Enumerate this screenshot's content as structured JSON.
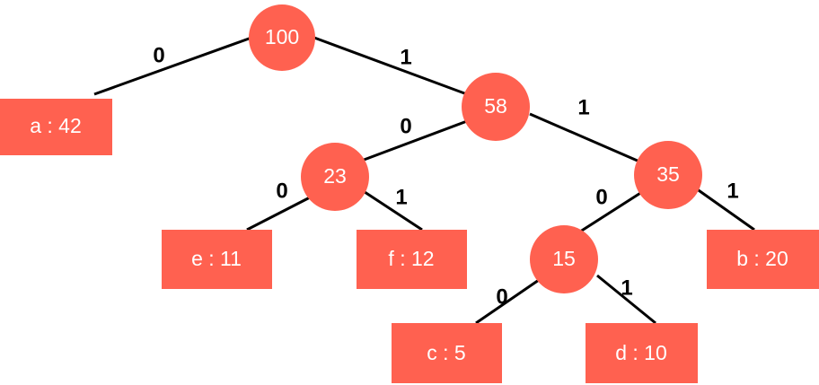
{
  "colors": {
    "node": "#FF6150",
    "edge": "#000000",
    "node_text": "#FFFFFF"
  },
  "nodes": {
    "n100": "100",
    "n58": "58",
    "n23": "23",
    "n35": "35",
    "n15": "15"
  },
  "leaves": {
    "a": "a : 42",
    "e": "e : 11",
    "f": "f : 12",
    "b": "b : 20",
    "c": "c : 5",
    "d": "d : 10"
  },
  "edge_labels": {
    "n100_a": "0",
    "n100_n58": "1",
    "n58_n23": "0",
    "n58_n35": "1",
    "n23_e": "0",
    "n23_f": "1",
    "n35_n15": "0",
    "n35_b": "1",
    "n15_c": "0",
    "n15_d": "1"
  }
}
